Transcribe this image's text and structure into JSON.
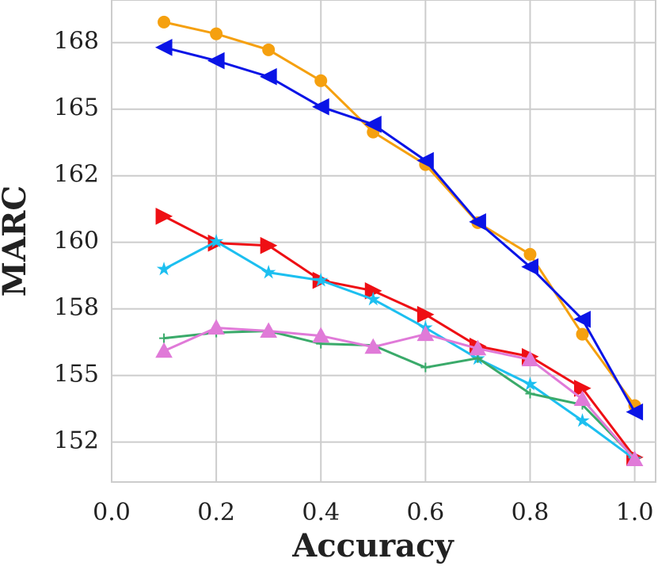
{
  "chart_data": {
    "type": "line",
    "x_label": "Accuracy",
    "y_label": "MARC",
    "x": [
      0.1,
      0.2,
      0.3,
      0.4,
      0.5,
      0.6,
      0.7,
      0.8,
      0.9,
      1.0
    ],
    "xlim": [
      0,
      1.04
    ],
    "xticks": [
      {
        "value": 0,
        "label": "0.0"
      },
      0.2,
      0.4,
      0.6,
      0.8,
      {
        "value": 1,
        "label": "1.0"
      }
    ],
    "ylim": [
      151.0,
      169.1
    ],
    "yticks": [
      {
        "value": 152.5,
        "label": "152"
      },
      {
        "value": 155,
        "label": "155"
      },
      {
        "value": 157.5,
        "label": "158"
      },
      {
        "value": 160,
        "label": "160"
      },
      {
        "value": 162.5,
        "label": "162"
      },
      {
        "value": 165,
        "label": "165"
      },
      {
        "value": 167.5,
        "label": "168"
      }
    ],
    "grid": true,
    "series": [
      {
        "color": "#f5a00f",
        "marker": "circle",
        "values": [
          168.27,
          167.83,
          167.23,
          166.07,
          164.14,
          162.92,
          160.74,
          159.55,
          156.55,
          153.87
        ]
      },
      {
        "color": "#0a14e6",
        "marker": "triangle-left",
        "values": [
          167.32,
          166.82,
          166.22,
          165.09,
          164.43,
          163.07,
          160.77,
          159.08,
          157.11,
          153.63
        ]
      },
      {
        "color": "#ee0f14",
        "marker": "triangle-right",
        "values": [
          160.98,
          159.97,
          159.88,
          158.57,
          158.18,
          157.29,
          156.1,
          155.71,
          154.52,
          151.93
        ]
      },
      {
        "color": "#1cbff0",
        "marker": "star",
        "values": [
          158.99,
          160.03,
          158.87,
          158.57,
          157.86,
          156.79,
          155.63,
          154.67,
          153.3,
          151.85
        ]
      },
      {
        "color": "#3aaa6a",
        "marker": "plus",
        "values": [
          156.4,
          156.61,
          156.67,
          156.19,
          156.13,
          155.3,
          155.65,
          154.32,
          153.9,
          151.9
        ]
      },
      {
        "color": "#e07ad8",
        "marker": "triangle-up",
        "values": [
          155.92,
          156.79,
          156.67,
          156.49,
          156.07,
          156.55,
          156.01,
          155.6,
          154.11,
          151.85
        ]
      }
    ]
  }
}
